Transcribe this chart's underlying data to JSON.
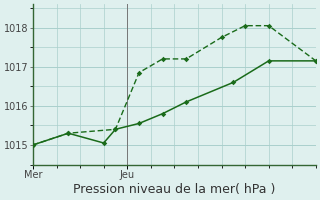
{
  "background_color": "#dff0ee",
  "grid_color": "#aacfcc",
  "line_color": "#1a6b1a",
  "xlabel": "Pression niveau de la mer( hPa )",
  "ylim": [
    1014.5,
    1018.6
  ],
  "yticks": [
    1015,
    1016,
    1017,
    1018
  ],
  "xlim": [
    0,
    12
  ],
  "x_mer": 0,
  "x_jeu": 4,
  "line1_x": [
    0,
    1.5,
    3,
    3.5,
    4.5,
    5.5,
    6.5,
    8.5,
    10,
    12
  ],
  "line1_y": [
    1015.0,
    1015.3,
    1015.05,
    1015.4,
    1015.55,
    1015.8,
    1016.1,
    1016.6,
    1017.15,
    1017.15
  ],
  "line2_x": [
    0,
    1.5,
    3.5,
    4.5,
    5.5,
    6.5,
    8,
    9,
    10,
    12
  ],
  "line2_y": [
    1015.0,
    1015.3,
    1015.4,
    1016.85,
    1017.2,
    1017.2,
    1017.75,
    1018.05,
    1018.05,
    1017.15
  ],
  "xtick_positions": [
    0,
    4
  ],
  "xtick_labels": [
    "Mer",
    "Jeu"
  ],
  "xlabel_fontsize": 9,
  "ytick_fontsize": 7,
  "xtick_fontsize": 7
}
